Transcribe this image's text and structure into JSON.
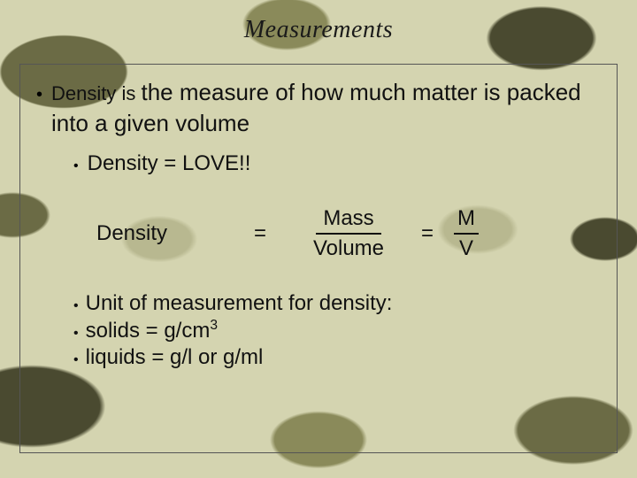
{
  "slide": {
    "title": "Measurements",
    "background": {
      "base_color": "#d4d4b0",
      "pattern": "camouflage",
      "blob_colors": [
        "#6b6b45",
        "#4a4a30",
        "#8a8a5a",
        "#b8b890"
      ]
    },
    "content_box": {
      "border_color": "#555555"
    },
    "main_bullet": {
      "lead": "Density is ",
      "big": "the measure of how much matter is packed into a given volume"
    },
    "sub_bullet_1": "Density = LOVE!!",
    "formula": {
      "lhs": "Density",
      "eq1": "=",
      "frac1_top": "Mass",
      "frac1_bot": "Volume",
      "eq2": "=",
      "frac2_top": "M",
      "frac2_bot": "V"
    },
    "units": {
      "heading": "Unit of measurement for density:",
      "solids": "solids = g/cm",
      "solids_sup": "3",
      "liquids": "liquids = g/l or g/ml"
    },
    "typography": {
      "title_font": "Georgia italic",
      "title_size_pt": 21,
      "body_font": "Arial",
      "body_size_pt": 18,
      "text_color": "#111111"
    }
  }
}
